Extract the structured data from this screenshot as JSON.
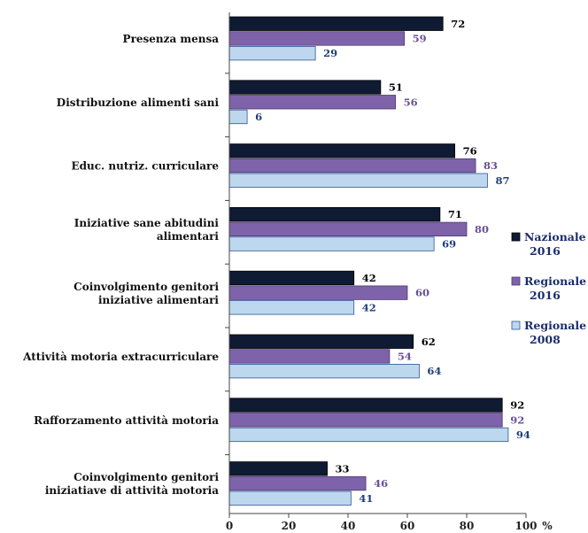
{
  "chart_data": {
    "type": "bar",
    "orientation": "horizontal",
    "title": "",
    "xlabel": "",
    "ylabel": "",
    "unit": "%",
    "xlim": [
      0,
      100
    ],
    "xticks": [
      0,
      20,
      40,
      60,
      80,
      100
    ],
    "grid": false,
    "legend_position": "right",
    "categories": [
      [
        "Presenza mensa"
      ],
      [
        "Distribuzione alimenti sani"
      ],
      [
        "Educ. nutriz. curriculare"
      ],
      [
        "Iniziative sane abitudini",
        "alimentari"
      ],
      [
        "Coinvolgimento genitori",
        "iniziative alimentari"
      ],
      [
        "Attività motoria extracurriculare"
      ],
      [
        "Rafforzamento attività motoria"
      ],
      [
        "Coinvolgimento genitori",
        "iniziatiave di attività motoria"
      ]
    ],
    "series": [
      {
        "name": [
          "Nazionale",
          "2016"
        ],
        "color": "#0f1a33",
        "stroke": "#000000",
        "label_color": "#000000",
        "values": [
          72,
          51,
          76,
          71,
          42,
          62,
          92,
          33
        ]
      },
      {
        "name": [
          "Regionale",
          "2016"
        ],
        "color": "#7e63aa",
        "stroke": "#4a3a72",
        "label_color": "#6a4f96",
        "values": [
          59,
          56,
          83,
          80,
          60,
          54,
          92,
          46
        ]
      },
      {
        "name": [
          "Regionale",
          "2008"
        ],
        "color": "#bdd7ee",
        "stroke": "#2f5597",
        "label_color": "#1f3d7a",
        "values": [
          29,
          6,
          87,
          69,
          42,
          64,
          94,
          41
        ]
      }
    ]
  }
}
